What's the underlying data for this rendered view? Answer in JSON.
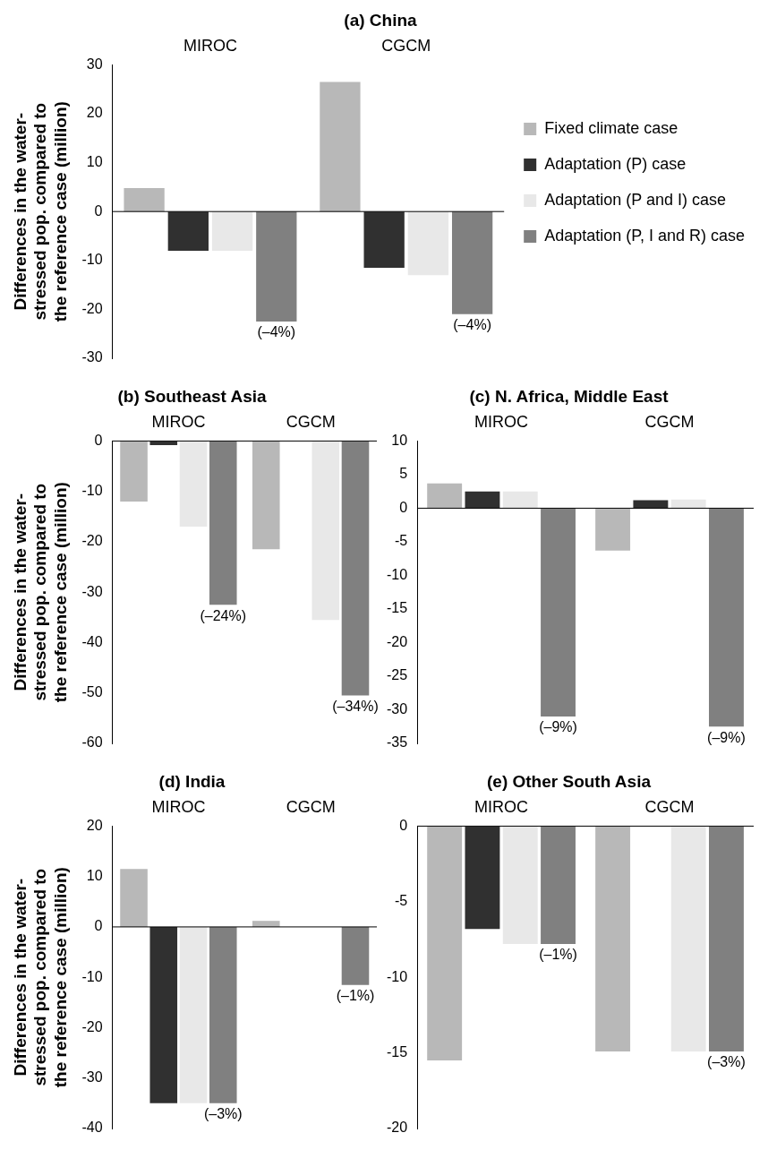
{
  "chart_data": [
    {
      "type": "bar",
      "title": "(a) China",
      "ylabel": "Differences in the water-stressed pop. compared to the reference case (million)",
      "categories": [
        "MIROC",
        "CGCM"
      ],
      "legend": "right",
      "series": [
        {
          "name": "Fixed climate case",
          "color": "#b8b8b8",
          "values": [
            4.8,
            26.5
          ]
        },
        {
          "name": "Adaptation (P) case",
          "color": "#303030",
          "values": [
            -8,
            -11.5
          ]
        },
        {
          "name": "Adaptation (P and I) case",
          "color": "#e8e8e8",
          "values": [
            -8,
            -13
          ]
        },
        {
          "name": "Adaptation (P, I and R) case",
          "color": "#808080",
          "values": [
            -22.5,
            -21
          ]
        }
      ],
      "ylim": [
        -30,
        30
      ],
      "yticks": [
        -30,
        -20,
        -10,
        0,
        10,
        20,
        30
      ],
      "annotations": [
        "(–4%)",
        "(–4%)"
      ]
    },
    {
      "type": "bar",
      "title": "(b) Southeast Asia",
      "ylabel": "Differences in the water-stressed pop. compared to the reference case (million)",
      "categories": [
        "MIROC",
        "CGCM"
      ],
      "series": [
        {
          "color": "#b8b8b8",
          "values": [
            -12,
            -21.5
          ]
        },
        {
          "color": "#303030",
          "values": [
            -0.8,
            null
          ]
        },
        {
          "color": "#e8e8e8",
          "values": [
            -17,
            -35.5
          ]
        },
        {
          "color": "#808080",
          "values": [
            -32.5,
            -50.5
          ]
        }
      ],
      "ylim": [
        -60,
        0
      ],
      "yticks": [
        -60,
        -50,
        -40,
        -30,
        -20,
        -10,
        0
      ],
      "annotations": [
        "(–24%)",
        "(–34%)"
      ]
    },
    {
      "type": "bar",
      "title": "(c) N. Africa, Middle East",
      "categories": [
        "MIROC",
        "CGCM"
      ],
      "series": [
        {
          "color": "#b8b8b8",
          "values": [
            3.7,
            -6.3
          ]
        },
        {
          "color": "#303030",
          "values": [
            2.5,
            1.2
          ]
        },
        {
          "color": "#e8e8e8",
          "values": [
            2.5,
            1.3
          ]
        },
        {
          "color": "#808080",
          "values": [
            -31,
            -32.5
          ]
        }
      ],
      "ylim": [
        -35,
        10
      ],
      "yticks": [
        -35,
        -30,
        -25,
        -20,
        -15,
        -10,
        -5,
        0,
        5,
        10
      ],
      "annotations": [
        "(–9%)",
        "(–9%)"
      ]
    },
    {
      "type": "bar",
      "title": "(d) India",
      "ylabel": "Differences in the water-stressed pop. compared to the reference case (million)",
      "categories": [
        "MIROC",
        "CGCM"
      ],
      "series": [
        {
          "color": "#b8b8b8",
          "values": [
            11.5,
            1.2
          ]
        },
        {
          "color": "#303030",
          "values": [
            -35,
            null
          ]
        },
        {
          "color": "#e8e8e8",
          "values": [
            -35,
            null
          ]
        },
        {
          "color": "#808080",
          "values": [
            -35,
            -11.5
          ]
        }
      ],
      "ylim": [
        -40,
        20
      ],
      "yticks": [
        -40,
        -30,
        -20,
        -10,
        0,
        10,
        20
      ],
      "annotations": [
        "(–3%)",
        "(–1%)"
      ]
    },
    {
      "type": "bar",
      "title": "(e) Other South Asia",
      "categories": [
        "MIROC",
        "CGCM"
      ],
      "series": [
        {
          "color": "#b8b8b8",
          "values": [
            -15.5,
            -14.9
          ]
        },
        {
          "color": "#303030",
          "values": [
            -6.8,
            null
          ]
        },
        {
          "color": "#e8e8e8",
          "values": [
            -7.8,
            -14.9
          ]
        },
        {
          "color": "#808080",
          "values": [
            -7.8,
            -14.9
          ]
        }
      ],
      "ylim": [
        -20,
        0
      ],
      "yticks": [
        -20,
        -15,
        -10,
        -5,
        0
      ],
      "annotations": [
        "(–1%)",
        "(–3%)"
      ]
    }
  ]
}
